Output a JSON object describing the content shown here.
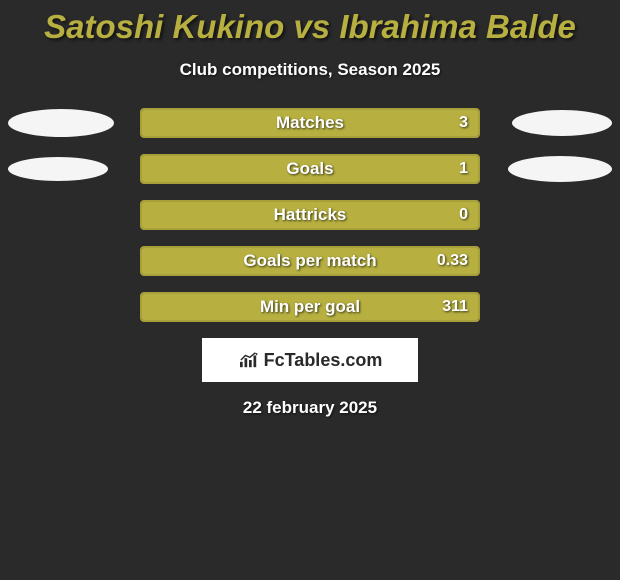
{
  "title": {
    "text": "Satoshi Kukino vs Ibrahima Balde",
    "color": "#b7b041",
    "fontsize": 33
  },
  "subtitle": {
    "text": "Club competitions, Season 2025",
    "color": "#ffffff",
    "fontsize": 17
  },
  "fctables_logo_text": "FcTables.com",
  "date": "22 february 2025",
  "background_color": "#2a2a2a",
  "bar_style": {
    "border_color": "#a79f3a",
    "fill_color": "#b7b041",
    "outer_width": 340,
    "height": 30,
    "border_radius": 4,
    "label_fontsize": 17,
    "value_fontsize": 16,
    "text_color": "#ffffff"
  },
  "ellipse_style": {
    "color": "#f5f5f5"
  },
  "stats": [
    {
      "label": "Matches",
      "value": "3",
      "fill_ratio": 1.0,
      "left_ellipse": {
        "w": 106,
        "h": 28
      },
      "right_ellipse": {
        "w": 100,
        "h": 26
      }
    },
    {
      "label": "Goals",
      "value": "1",
      "fill_ratio": 1.0,
      "left_ellipse": {
        "w": 100,
        "h": 24
      },
      "right_ellipse": {
        "w": 104,
        "h": 26
      }
    },
    {
      "label": "Hattricks",
      "value": "0",
      "fill_ratio": 1.0,
      "left_ellipse": null,
      "right_ellipse": null
    },
    {
      "label": "Goals per match",
      "value": "0.33",
      "fill_ratio": 1.0,
      "left_ellipse": null,
      "right_ellipse": null
    },
    {
      "label": "Min per goal",
      "value": "311",
      "fill_ratio": 1.0,
      "left_ellipse": null,
      "right_ellipse": null
    }
  ]
}
